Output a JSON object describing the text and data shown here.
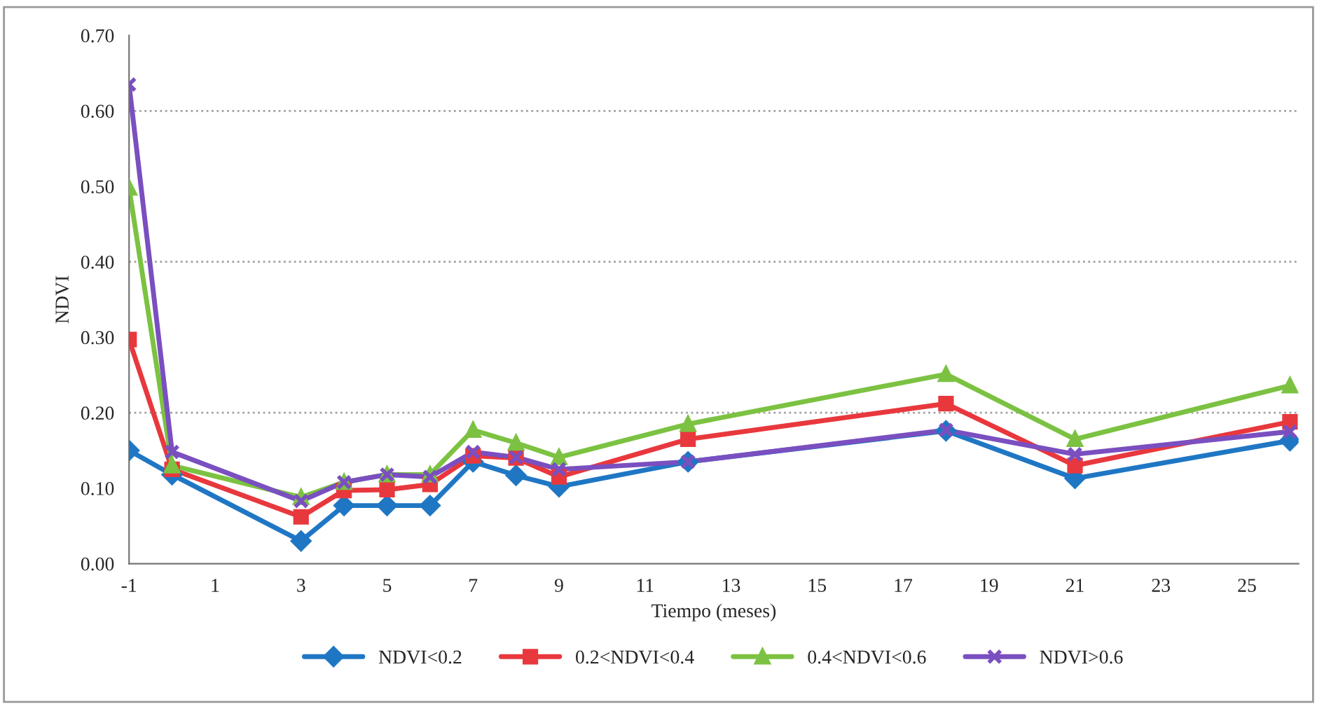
{
  "chart_data": {
    "type": "line",
    "xlabel": "Tiempo (meses)",
    "ylabel": "NDVI",
    "x": [
      -1,
      0,
      3,
      4,
      5,
      6,
      7,
      8,
      9,
      12,
      18,
      21,
      26
    ],
    "xlim": [
      -1,
      26.2
    ],
    "xticks": [
      -1,
      1,
      3,
      5,
      7,
      9,
      11,
      13,
      15,
      17,
      19,
      21,
      23,
      25
    ],
    "ylim": [
      0,
      0.7
    ],
    "yticks": [
      {
        "value": 0,
        "label": "0.00"
      },
      {
        "value": 0.1,
        "label": "0.10"
      },
      {
        "value": 0.2,
        "label": "0.20"
      },
      {
        "value": 0.3,
        "label": "0.30"
      },
      {
        "value": 0.4,
        "label": "0.40"
      },
      {
        "value": 0.5,
        "label": "0.50"
      },
      {
        "value": 0.6,
        "label": "0.60"
      },
      {
        "value": 0.7,
        "label": "0.70"
      }
    ],
    "ref_lines": [
      {
        "axis": "y",
        "value": 0.2,
        "color": "#a0a0a0",
        "line_style": "dotted"
      },
      {
        "axis": "y",
        "value": 0.4,
        "color": "#a0a0a0",
        "line_style": "dotted"
      },
      {
        "axis": "y",
        "value": 0.6,
        "color": "#a0a0a0",
        "line_style": "dotted"
      }
    ],
    "legend": "bottom",
    "series": [
      {
        "name": "NDVI<0.2",
        "color": "#1f77c4",
        "marker": "diamond",
        "values": [
          0.15,
          0.118,
          0.03,
          0.077,
          0.077,
          0.077,
          0.135,
          0.117,
          0.102,
          0.135,
          0.176,
          0.113,
          0.163
        ]
      },
      {
        "name": "0.2<NDVI<0.4",
        "color": "#e8383d",
        "marker": "square",
        "values": [
          0.297,
          0.125,
          0.062,
          0.097,
          0.098,
          0.105,
          0.143,
          0.14,
          0.115,
          0.165,
          0.212,
          0.13,
          0.188
        ]
      },
      {
        "name": "0.4<NDVI<0.6",
        "color": "#7cc242",
        "marker": "triangle",
        "values": [
          0.498,
          0.13,
          0.088,
          0.108,
          0.118,
          0.118,
          0.177,
          0.16,
          0.141,
          0.185,
          0.251,
          0.165,
          0.236
        ]
      },
      {
        "name": "NDVI>0.6",
        "color": "#7a4fc0",
        "marker": "cross",
        "values": [
          0.635,
          0.148,
          0.083,
          0.108,
          0.118,
          0.115,
          0.148,
          0.141,
          0.125,
          0.135,
          0.177,
          0.145,
          0.175
        ]
      }
    ]
  }
}
